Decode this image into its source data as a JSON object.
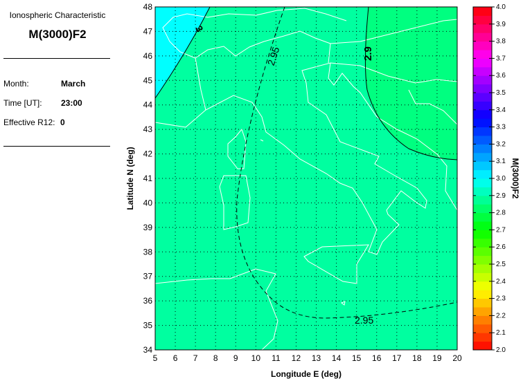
{
  "info": {
    "heading": "Ionospheric Characteristic",
    "parameter": "M(3000)F2",
    "month_label": "Month:",
    "month": "March",
    "time_label": "Time [UT]:",
    "time": "23:00",
    "r12_label": "Effective R12:",
    "r12": "0"
  },
  "chart_data": {
    "type": "heatmap",
    "subtype": "contour map",
    "xlabel": "Longitude E (deg)",
    "ylabel": "Latitude N (deg)",
    "xlim": [
      5,
      20
    ],
    "ylim": [
      34,
      48
    ],
    "xticks": [
      "5",
      "6",
      "7",
      "8",
      "9",
      "10",
      "11",
      "12",
      "13",
      "14",
      "15",
      "16",
      "17",
      "18",
      "19",
      "20"
    ],
    "yticks": [
      "34",
      "35",
      "36",
      "37",
      "38",
      "39",
      "40",
      "41",
      "42",
      "43",
      "44",
      "45",
      "46",
      "47",
      "48"
    ],
    "grid": true,
    "contours": [
      {
        "level": "3",
        "style": "solid"
      },
      {
        "level": "2.95",
        "style": "dashed"
      },
      {
        "level": "2.9",
        "style": "solid"
      }
    ],
    "region_colors": {
      "above_3": "#00ffff",
      "between_2.9_3": "#00ffa0",
      "below_2.9": "#00ff80"
    },
    "coastline_color": "#ffffff",
    "colorbar": {
      "label": "M(3000)F2",
      "range": [
        2.0,
        4.0
      ],
      "step": 0.05,
      "ticks": [
        "2.0",
        "2.1",
        "2.2",
        "2.3",
        "2.4",
        "2.5",
        "2.6",
        "2.7",
        "2.8",
        "2.9",
        "3.0",
        "3.1",
        "3.2",
        "3.3",
        "3.4",
        "3.5",
        "3.6",
        "3.7",
        "3.8",
        "3.9",
        "4.0"
      ],
      "colormap": "jet-like red-yellow-green-cyan-blue-magenta-red"
    }
  }
}
